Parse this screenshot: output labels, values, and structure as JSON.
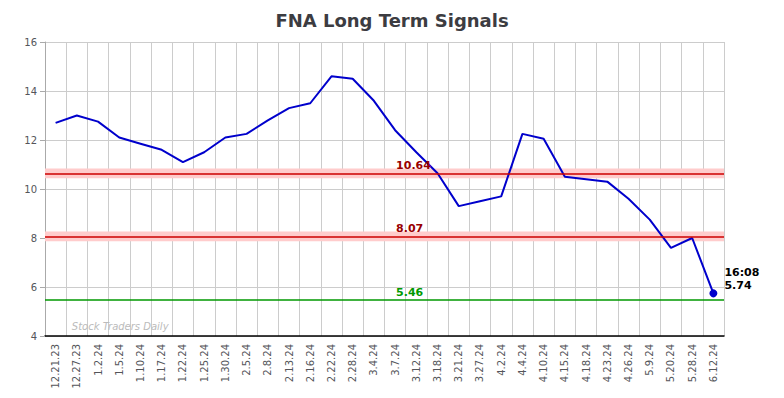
{
  "chart_data": {
    "type": "line",
    "title": "FNA Long Term Signals",
    "categories": [
      "12.21.23",
      "12.27.23",
      "1.2.24",
      "1.5.24",
      "1.10.24",
      "1.17.24",
      "1.22.24",
      "1.25.24",
      "1.30.24",
      "2.5.24",
      "2.8.24",
      "2.13.24",
      "2.16.24",
      "2.22.24",
      "2.28.24",
      "3.4.24",
      "3.7.24",
      "3.12.24",
      "3.18.24",
      "3.21.24",
      "3.27.24",
      "4.2.24",
      "4.4.24",
      "4.10.24",
      "4.15.24",
      "4.18.24",
      "4.23.24",
      "4.26.24",
      "5.9.24",
      "5.20.24",
      "5.28.24",
      "6.12.24"
    ],
    "values": [
      12.7,
      13.0,
      12.75,
      12.1,
      11.85,
      11.6,
      11.1,
      11.5,
      12.1,
      12.25,
      12.8,
      13.3,
      13.5,
      14.6,
      14.5,
      13.6,
      12.4,
      11.5,
      10.64,
      9.3,
      9.5,
      9.7,
      12.25,
      12.05,
      10.5,
      10.4,
      10.3,
      9.6,
      8.75,
      7.6,
      8.0,
      5.74
    ],
    "color": "#0000cc",
    "ylim": [
      4,
      16
    ],
    "yticks": [
      4,
      6,
      8,
      10,
      12,
      14,
      16
    ],
    "grid": true,
    "hlines": [
      {
        "y": 10.64,
        "color": "#cc0000",
        "label": "10.64",
        "label_color": "#990000",
        "label_x": "3.7.24"
      },
      {
        "y": 8.07,
        "color": "#cc0000",
        "label": "8.07",
        "label_color": "#990000",
        "label_x": "3.7.24"
      },
      {
        "y": 5.46,
        "color": "#009900",
        "label": "5.46",
        "label_color": "#009900",
        "label_x": "3.7.24"
      }
    ],
    "bands": [
      {
        "from": 10.44,
        "to": 10.84,
        "color": "#ffcccc"
      },
      {
        "from": 7.87,
        "to": 8.27,
        "color": "#ffcccc"
      }
    ],
    "annotations": [
      {
        "text": "16:08\n5.74",
        "x": "6.12.24",
        "y": 5.74,
        "color": "#000000"
      },
      {
        "text": "Stock Traders Daily",
        "x": "12.27.23",
        "y": 4.15,
        "color": "#bbbbbb"
      }
    ]
  }
}
